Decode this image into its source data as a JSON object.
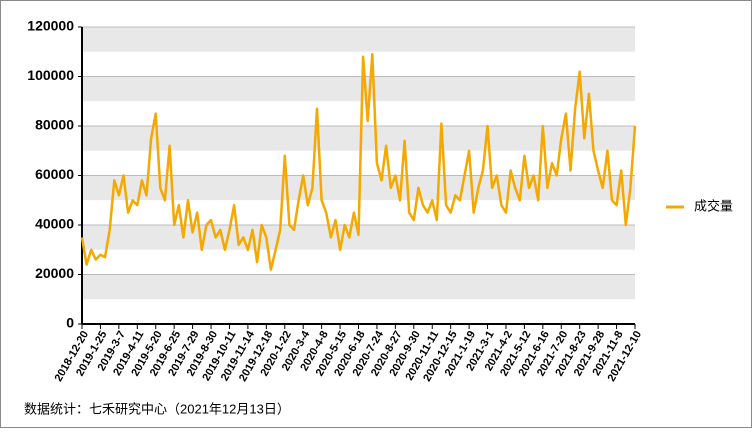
{
  "chart_data": {
    "type": "line",
    "footer": "数据统计：七禾研究中心（2021年12月13日）",
    "categories": [
      "2018-12-20",
      null,
      null,
      null,
      "2019-1-25",
      null,
      null,
      null,
      "2019-3-7",
      null,
      null,
      null,
      "2019-4-11",
      null,
      null,
      null,
      "2019-5-20",
      null,
      null,
      null,
      "2019-6-25",
      null,
      null,
      null,
      "2019-7-29",
      null,
      null,
      null,
      "2019-8-30",
      null,
      null,
      null,
      "2019-10-11",
      null,
      null,
      null,
      "2019-11-14",
      null,
      null,
      null,
      "2019-12-18",
      null,
      null,
      null,
      "2020-1-22",
      null,
      null,
      null,
      "2020-3-4",
      null,
      null,
      null,
      "2020-4-8",
      null,
      null,
      null,
      "2020-5-15",
      null,
      null,
      null,
      "2020-6-18",
      null,
      null,
      null,
      "2020-7-24",
      null,
      null,
      null,
      "2020-8-27",
      null,
      null,
      null,
      "2020-9-30",
      null,
      null,
      null,
      "2020-11-11",
      null,
      null,
      null,
      "2020-12-15",
      null,
      null,
      null,
      "2021-1-19",
      null,
      null,
      null,
      "2021-3-1",
      null,
      null,
      null,
      "2021-4-2",
      null,
      null,
      null,
      "2021-5-12",
      null,
      null,
      null,
      "2021-6-16",
      null,
      null,
      null,
      "2021-7-20",
      null,
      null,
      null,
      "2021-8-23",
      null,
      null,
      null,
      "2021-9-28",
      null,
      null,
      null,
      "2021-11-8",
      null,
      null,
      null,
      "2021-12-10"
    ],
    "series": [
      {
        "name": "成交量",
        "color": "#f5a800",
        "values": [
          35000,
          24000,
          30000,
          26000,
          28000,
          27000,
          38000,
          58000,
          52000,
          60000,
          45000,
          50000,
          48000,
          58000,
          52000,
          75000,
          85000,
          55000,
          50000,
          72000,
          40000,
          48000,
          35000,
          50000,
          37000,
          45000,
          30000,
          40000,
          42000,
          35000,
          38000,
          30000,
          38000,
          48000,
          32000,
          35000,
          30000,
          38000,
          25000,
          40000,
          35000,
          22000,
          30000,
          38000,
          68000,
          40000,
          38000,
          50000,
          60000,
          48000,
          55000,
          87000,
          50000,
          45000,
          35000,
          42000,
          30000,
          40000,
          35000,
          45000,
          36000,
          108000,
          82000,
          109000,
          65000,
          58000,
          72000,
          55000,
          60000,
          50000,
          74000,
          45000,
          42000,
          55000,
          48000,
          45000,
          50000,
          42000,
          81000,
          48000,
          45000,
          52000,
          50000,
          60000,
          70000,
          45000,
          55000,
          62000,
          80000,
          55000,
          60000,
          48000,
          45000,
          62000,
          55000,
          50000,
          68000,
          55000,
          60000,
          50000,
          80000,
          55000,
          65000,
          60000,
          75000,
          85000,
          62000,
          87000,
          102000,
          75000,
          93000,
          70000,
          62000,
          55000,
          70000,
          50000,
          48000,
          62000,
          40000,
          55000,
          80000
        ]
      }
    ],
    "ylim": [
      0,
      120000
    ],
    "yticks": [
      0,
      20000,
      40000,
      60000,
      80000,
      100000,
      120000
    ],
    "grid": true,
    "legend": "right"
  }
}
